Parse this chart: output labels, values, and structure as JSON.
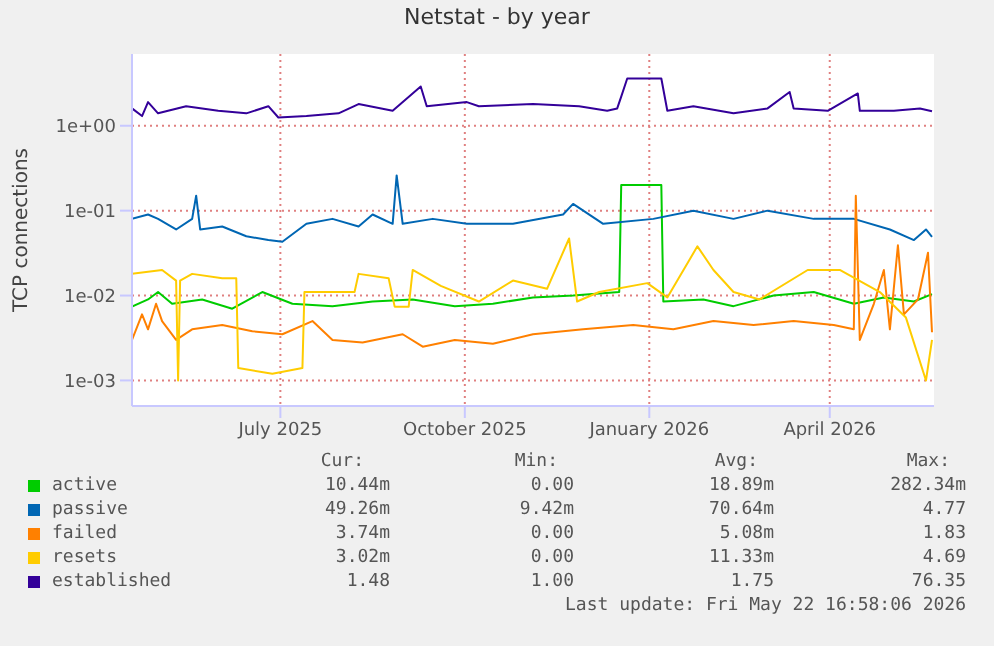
{
  "chart_data": {
    "type": "line",
    "title": "Netstat - by year",
    "ylabel": "TCP connections",
    "log": "y",
    "grid": true,
    "legend": "bottom",
    "marker": "none",
    "line_style": "solid",
    "xlim": [
      "2025-04-18",
      "2026-05-23"
    ],
    "xticks": [
      {
        "value": "2025-07-01",
        "label": "July 2025"
      },
      {
        "value": "2025-10-01",
        "label": "October 2025"
      },
      {
        "value": "2026-01-01",
        "label": "January 2026"
      },
      {
        "value": "2026-04-01",
        "label": "April 2026"
      }
    ],
    "ylim": [
      0.0005,
      7
    ],
    "yticks": [
      {
        "value": 0.001,
        "label": "1e-03"
      },
      {
        "value": 0.01,
        "label": "1e-02"
      },
      {
        "value": 0.1,
        "label": "1e-01"
      },
      {
        "value": 1,
        "label": "1e+00"
      }
    ],
    "series": [
      {
        "name": "active",
        "color": "#00cc00",
        "x": [
          "2025-04-18",
          "2025-04-26",
          "2025-05-01",
          "2025-05-08",
          "2025-05-23",
          "2025-06-07",
          "2025-06-22",
          "2025-07-07",
          "2025-07-27",
          "2025-08-16",
          "2025-09-05",
          "2025-09-26",
          "2025-10-15",
          "2025-11-04",
          "2025-11-24",
          "2025-12-17",
          "2025-12-18",
          "2026-01-07",
          "2026-01-08",
          "2026-01-28",
          "2026-02-12",
          "2026-03-04",
          "2026-03-24",
          "2026-04-13",
          "2026-04-28",
          "2026-05-13",
          "2026-05-22"
        ],
        "values": [
          0.0074,
          0.009,
          0.011,
          0.008,
          0.009,
          0.007,
          0.011,
          0.008,
          0.0075,
          0.0085,
          0.009,
          0.0075,
          0.008,
          0.0095,
          0.01,
          0.011,
          0.2,
          0.2,
          0.0085,
          0.009,
          0.0075,
          0.01,
          0.011,
          0.008,
          0.0095,
          0.0085,
          0.0104
        ]
      },
      {
        "name": "passive",
        "color": "#0066b3",
        "x": [
          "2025-04-18",
          "2025-04-26",
          "2025-05-01",
          "2025-05-10",
          "2025-05-18",
          "2025-05-20",
          "2025-05-22",
          "2025-06-02",
          "2025-06-14",
          "2025-06-25",
          "2025-07-02",
          "2025-07-14",
          "2025-07-27",
          "2025-08-09",
          "2025-08-16",
          "2025-08-26",
          "2025-08-28",
          "2025-08-31",
          "2025-09-15",
          "2025-10-02",
          "2025-10-25",
          "2025-11-19",
          "2025-11-24",
          "2025-12-09",
          "2026-01-03",
          "2026-01-23",
          "2026-02-12",
          "2026-03-01",
          "2026-03-24",
          "2026-04-13",
          "2026-05-01",
          "2026-05-13",
          "2026-05-19",
          "2026-05-22"
        ],
        "values": [
          0.08,
          0.09,
          0.08,
          0.06,
          0.08,
          0.15,
          0.06,
          0.065,
          0.05,
          0.045,
          0.043,
          0.07,
          0.08,
          0.065,
          0.09,
          0.07,
          0.26,
          0.07,
          0.08,
          0.07,
          0.07,
          0.09,
          0.12,
          0.07,
          0.08,
          0.1,
          0.08,
          0.1,
          0.08,
          0.08,
          0.06,
          0.045,
          0.06,
          0.049
        ]
      },
      {
        "name": "failed",
        "color": "#ff8000",
        "x": [
          "2025-04-18",
          "2025-04-23",
          "2025-04-26",
          "2025-04-30",
          "2025-05-03",
          "2025-05-10",
          "2025-05-18",
          "2025-06-02",
          "2025-06-17",
          "2025-07-02",
          "2025-07-17",
          "2025-07-27",
          "2025-08-11",
          "2025-08-31",
          "2025-09-10",
          "2025-09-26",
          "2025-10-15",
          "2025-11-04",
          "2025-11-29",
          "2025-12-24",
          "2026-01-13",
          "2026-02-02",
          "2026-02-22",
          "2026-03-14",
          "2026-04-03",
          "2026-04-13",
          "2026-04-14",
          "2026-04-16",
          "2026-04-23",
          "2026-04-28",
          "2026-05-01",
          "2026-05-05",
          "2026-05-08",
          "2026-05-15",
          "2026-05-20",
          "2026-05-22"
        ],
        "values": [
          0.003,
          0.006,
          0.004,
          0.008,
          0.005,
          0.003,
          0.004,
          0.0045,
          0.0038,
          0.0035,
          0.005,
          0.003,
          0.0028,
          0.0035,
          0.0025,
          0.003,
          0.0027,
          0.0035,
          0.004,
          0.0045,
          0.004,
          0.005,
          0.0045,
          0.005,
          0.0045,
          0.004,
          0.15,
          0.003,
          0.008,
          0.02,
          0.004,
          0.039,
          0.006,
          0.009,
          0.032,
          0.0037
        ]
      },
      {
        "name": "resets",
        "color": "#ffcc00",
        "x": [
          "2025-04-18",
          "2025-05-03",
          "2025-05-10",
          "2025-05-11",
          "2025-05-12",
          "2025-05-18",
          "2025-06-02",
          "2025-06-09",
          "2025-06-10",
          "2025-06-27",
          "2025-07-12",
          "2025-07-13",
          "2025-08-07",
          "2025-08-09",
          "2025-08-24",
          "2025-08-27",
          "2025-09-03",
          "2025-09-05",
          "2025-09-19",
          "2025-10-08",
          "2025-10-25",
          "2025-11-11",
          "2025-11-22",
          "2025-11-26",
          "2025-12-07",
          "2025-12-31",
          "2026-01-10",
          "2026-01-25",
          "2026-02-02",
          "2026-02-12",
          "2026-02-25",
          "2026-03-21",
          "2026-04-06",
          "2026-04-26",
          "2026-05-09",
          "2026-05-19",
          "2026-05-22"
        ],
        "values": [
          0.018,
          0.02,
          0.015,
          0.001,
          0.015,
          0.018,
          0.016,
          0.016,
          0.0014,
          0.0012,
          0.0014,
          0.011,
          0.011,
          0.018,
          0.016,
          0.0074,
          0.0074,
          0.02,
          0.013,
          0.0085,
          0.015,
          0.012,
          0.047,
          0.0085,
          0.011,
          0.014,
          0.0095,
          0.038,
          0.02,
          0.011,
          0.009,
          0.02,
          0.02,
          0.011,
          0.0055,
          0.001,
          0.003
        ]
      },
      {
        "name": "established",
        "color": "#330099",
        "x": [
          "2025-04-18",
          "2025-04-23",
          "2025-04-26",
          "2025-05-01",
          "2025-05-15",
          "2025-05-31",
          "2025-06-14",
          "2025-06-25",
          "2025-06-30",
          "2025-07-14",
          "2025-07-30",
          "2025-08-09",
          "2025-08-26",
          "2025-09-09",
          "2025-09-12",
          "2025-10-02",
          "2025-10-08",
          "2025-11-04",
          "2025-11-27",
          "2025-12-11",
          "2025-12-16",
          "2025-12-18",
          "2025-12-21",
          "2026-01-07",
          "2026-01-10",
          "2026-01-23",
          "2026-02-12",
          "2026-03-01",
          "2026-03-12",
          "2026-03-14",
          "2026-03-31",
          "2026-04-15",
          "2026-04-16",
          "2026-05-03",
          "2026-05-16",
          "2026-05-22"
        ],
        "values": [
          1.6,
          1.3,
          1.9,
          1.4,
          1.7,
          1.5,
          1.4,
          1.7,
          1.25,
          1.3,
          1.4,
          1.8,
          1.5,
          2.9,
          1.7,
          1.9,
          1.7,
          1.8,
          1.7,
          1.5,
          1.6,
          2.2,
          3.6,
          3.6,
          1.5,
          1.7,
          1.4,
          1.6,
          2.5,
          1.6,
          1.5,
          2.4,
          1.5,
          1.5,
          1.6,
          1.48
        ]
      }
    ],
    "annotations": [
      "Cur:",
      "Min:",
      "Avg:",
      "Max:",
      "10.44m",
      "0.00",
      "18.89m",
      "282.34m",
      "49.26m",
      "9.42m",
      "70.64m",
      "4.77",
      "3.74m",
      "0.00",
      "5.08m",
      "1.83",
      "3.02m",
      "0.00",
      "11.33m",
      "4.69",
      "1.48",
      "1.00",
      "1.75",
      "76.35",
      "Last update: Fri May 22 16:58:06 2026"
    ]
  }
}
